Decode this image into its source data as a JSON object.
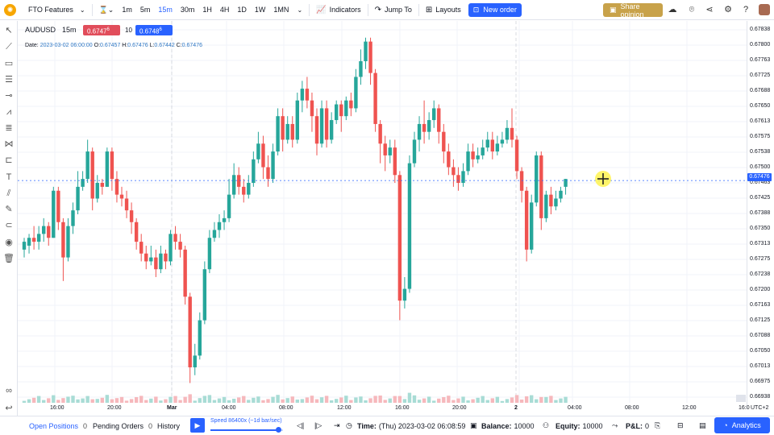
{
  "topbar": {
    "workspace": "FTO Features",
    "timeframes": [
      "1m",
      "5m",
      "15m",
      "30m",
      "1H",
      "4H",
      "1D",
      "1W",
      "1MN"
    ],
    "active_timeframe": "15m",
    "indicators": "Indicators",
    "jump_to": "Jump To",
    "layouts": "Layouts",
    "new_order": "New order",
    "share": "Share opinion"
  },
  "legend": {
    "symbol": "AUDUSD",
    "interval": "15m",
    "sell": "0.6747",
    "sell_sup": "6",
    "qty": "10",
    "buy": "0.6748",
    "buy_sup": "6",
    "date_label": "Date:",
    "date": "2023-03-02 06:00:00",
    "o_label": "O:",
    "o": "0.67457",
    "h_label": "H:",
    "h": "0.67476",
    "l_label": "L:",
    "l": "0.67442",
    "c_label": "C:",
    "c": "0.67476"
  },
  "price_axis": {
    "ticks": [
      "0.67838",
      "0.67800",
      "0.67763",
      "0.67725",
      "0.67688",
      "0.67650",
      "0.67613",
      "0.67575",
      "0.67538",
      "0.67500",
      "0.67463",
      "0.67425",
      "0.67388",
      "0.67350",
      "0.67313",
      "0.67275",
      "0.67238",
      "0.67200",
      "0.67163",
      "0.67125",
      "0.67088",
      "0.67050",
      "0.67013",
      "0.66975",
      "0.66938"
    ],
    "current": "0.67476",
    "tz": "UTC+2"
  },
  "time_axis": {
    "ticks": [
      "16:00",
      "20:00",
      "Mar",
      "04:00",
      "08:00",
      "12:00",
      "16:00",
      "20:00",
      "2",
      "04:00",
      "08:00",
      "12:00",
      "16:0"
    ]
  },
  "bottombar": {
    "open_positions": "Open Positions",
    "open_positions_count": "0",
    "pending_orders": "Pending Orders",
    "pending_orders_count": "0",
    "history": "History",
    "speed": "Speed 86400x (~1d bar/sec)",
    "time_label": "Time:",
    "time": "(Thu) 2023-03-02 06:08:59",
    "balance_label": "Balance:",
    "balance": "10000",
    "equity_label": "Equity:",
    "equity": "10000",
    "pnl_label": "P&L:",
    "pnl": "0",
    "analytics": "Analytics"
  },
  "chart_data": {
    "type": "candlestick",
    "symbol": "AUDUSD",
    "ylim": [
      0.6692,
      0.6786
    ],
    "x_ticks": [
      "16:00",
      "20:00",
      "Mar",
      "04:00",
      "08:00",
      "12:00",
      "16:00",
      "20:00",
      "2",
      "04:00",
      "08:00",
      "12:00"
    ],
    "colors": {
      "up": "#26a69a",
      "down": "#ef5350"
    },
    "candles": [
      [
        0.673,
        0.6732,
        0.6728,
        0.6733
      ],
      [
        0.6731,
        0.6733,
        0.6729,
        0.6734
      ],
      [
        0.6733,
        0.6732,
        0.673,
        0.6736
      ],
      [
        0.6732,
        0.6734,
        0.673,
        0.6736
      ],
      [
        0.6734,
        0.6736,
        0.6732,
        0.6738
      ],
      [
        0.6736,
        0.6733,
        0.6731,
        0.6737
      ],
      [
        0.6733,
        0.6745,
        0.6733,
        0.6746
      ],
      [
        0.6745,
        0.6737,
        0.6735,
        0.6746
      ],
      [
        0.6737,
        0.6728,
        0.6722,
        0.6738
      ],
      [
        0.6728,
        0.6736,
        0.6727,
        0.6738
      ],
      [
        0.6736,
        0.674,
        0.6734,
        0.6742
      ],
      [
        0.674,
        0.6746,
        0.6739,
        0.675
      ],
      [
        0.6746,
        0.6748,
        0.6745,
        0.675
      ],
      [
        0.6748,
        0.6755,
        0.6747,
        0.6758
      ],
      [
        0.6755,
        0.6743,
        0.674,
        0.6756
      ],
      [
        0.6743,
        0.6747,
        0.6742,
        0.6749
      ],
      [
        0.6747,
        0.6746,
        0.6744,
        0.6748
      ],
      [
        0.6746,
        0.6755,
        0.6746,
        0.6756
      ],
      [
        0.6755,
        0.6748,
        0.6745,
        0.6756
      ],
      [
        0.6748,
        0.6744,
        0.6742,
        0.675
      ],
      [
        0.6744,
        0.6743,
        0.6741,
        0.6746
      ],
      [
        0.6743,
        0.674,
        0.6738,
        0.6745
      ],
      [
        0.674,
        0.6737,
        0.6734,
        0.6742
      ],
      [
        0.6737,
        0.6732,
        0.673,
        0.6738
      ],
      [
        0.6732,
        0.6729,
        0.6727,
        0.6734
      ],
      [
        0.6729,
        0.6727,
        0.6725,
        0.6731
      ],
      [
        0.6727,
        0.6728,
        0.6726,
        0.6731
      ],
      [
        0.6728,
        0.6725,
        0.6723,
        0.673
      ],
      [
        0.6725,
        0.6729,
        0.6724,
        0.6731
      ],
      [
        0.6729,
        0.6727,
        0.6725,
        0.673
      ],
      [
        0.6727,
        0.6734,
        0.6726,
        0.6735
      ],
      [
        0.6734,
        0.6732,
        0.673,
        0.6736
      ],
      [
        0.6732,
        0.673,
        0.6728,
        0.6734
      ],
      [
        0.673,
        0.6718,
        0.6716,
        0.6731
      ],
      [
        0.6718,
        0.67,
        0.6696,
        0.6719
      ],
      [
        0.67,
        0.6703,
        0.6698,
        0.6706
      ],
      [
        0.6703,
        0.6712,
        0.6702,
        0.6714
      ],
      [
        0.6712,
        0.6725,
        0.6711,
        0.6727
      ],
      [
        0.6725,
        0.6733,
        0.6724,
        0.6735
      ],
      [
        0.6733,
        0.6735,
        0.6732,
        0.6737
      ],
      [
        0.6735,
        0.6737,
        0.6733,
        0.6739
      ],
      [
        0.6737,
        0.6738,
        0.6735,
        0.674
      ],
      [
        0.6738,
        0.6744,
        0.6737,
        0.6748
      ],
      [
        0.6744,
        0.6749,
        0.6743,
        0.6752
      ],
      [
        0.6749,
        0.6746,
        0.6744,
        0.6751
      ],
      [
        0.6746,
        0.6744,
        0.6742,
        0.6748
      ],
      [
        0.6744,
        0.6747,
        0.6743,
        0.6749
      ],
      [
        0.6747,
        0.6753,
        0.6746,
        0.6755
      ],
      [
        0.6753,
        0.6757,
        0.6752,
        0.676
      ],
      [
        0.6757,
        0.6751,
        0.6748,
        0.6759
      ],
      [
        0.6751,
        0.6748,
        0.6746,
        0.6754
      ],
      [
        0.6748,
        0.6755,
        0.6747,
        0.6757
      ],
      [
        0.6755,
        0.6764,
        0.6754,
        0.6766
      ],
      [
        0.6764,
        0.6758,
        0.6755,
        0.6766
      ],
      [
        0.6758,
        0.6762,
        0.6757,
        0.6764
      ],
      [
        0.6762,
        0.6758,
        0.6756,
        0.6764
      ],
      [
        0.6758,
        0.6768,
        0.6757,
        0.677
      ],
      [
        0.6768,
        0.6771,
        0.6765,
        0.6773
      ],
      [
        0.6771,
        0.6768,
        0.6766,
        0.6774
      ],
      [
        0.6768,
        0.6764,
        0.676,
        0.677
      ],
      [
        0.6764,
        0.6757,
        0.6754,
        0.6766
      ],
      [
        0.6757,
        0.6766,
        0.6756,
        0.6768
      ],
      [
        0.6766,
        0.6758,
        0.6756,
        0.6768
      ],
      [
        0.6758,
        0.6763,
        0.6757,
        0.6765
      ],
      [
        0.6763,
        0.6767,
        0.6762,
        0.6768
      ],
      [
        0.6767,
        0.6764,
        0.676,
        0.6768
      ],
      [
        0.6764,
        0.6768,
        0.6763,
        0.6769
      ],
      [
        0.6768,
        0.6766,
        0.6764,
        0.677
      ],
      [
        0.6766,
        0.6774,
        0.6765,
        0.6776
      ],
      [
        0.6774,
        0.6778,
        0.6772,
        0.6781
      ],
      [
        0.6778,
        0.6783,
        0.6776,
        0.6784
      ],
      [
        0.6783,
        0.6775,
        0.6772,
        0.6784
      ],
      [
        0.6775,
        0.6762,
        0.676,
        0.6776
      ],
      [
        0.6762,
        0.6757,
        0.6752,
        0.6763
      ],
      [
        0.6757,
        0.6754,
        0.675,
        0.6759
      ],
      [
        0.6754,
        0.6756,
        0.6752,
        0.6758
      ],
      [
        0.6756,
        0.6749,
        0.6747,
        0.6758
      ],
      [
        0.6749,
        0.6717,
        0.6712,
        0.675
      ],
      [
        0.6717,
        0.672,
        0.6715,
        0.6723
      ],
      [
        0.672,
        0.6752,
        0.6719,
        0.6754
      ],
      [
        0.6752,
        0.6758,
        0.6751,
        0.676
      ],
      [
        0.6758,
        0.6762,
        0.6755,
        0.6764
      ],
      [
        0.6762,
        0.676,
        0.6757,
        0.6768
      ],
      [
        0.676,
        0.6763,
        0.6758,
        0.6765
      ],
      [
        0.6763,
        0.6766,
        0.6761,
        0.6768
      ],
      [
        0.6766,
        0.676,
        0.6757,
        0.6767
      ],
      [
        0.676,
        0.6755,
        0.6752,
        0.6762
      ],
      [
        0.6755,
        0.6751,
        0.6749,
        0.6757
      ],
      [
        0.6751,
        0.6749,
        0.6746,
        0.6753
      ],
      [
        0.6749,
        0.6747,
        0.6745,
        0.6751
      ],
      [
        0.6747,
        0.675,
        0.6746,
        0.6752
      ],
      [
        0.675,
        0.6755,
        0.6749,
        0.6757
      ],
      [
        0.6755,
        0.6753,
        0.6751,
        0.6757
      ],
      [
        0.6753,
        0.6754,
        0.6752,
        0.6756
      ],
      [
        0.6754,
        0.6756,
        0.6753,
        0.6758
      ],
      [
        0.6756,
        0.6758,
        0.6755,
        0.676
      ],
      [
        0.6758,
        0.6755,
        0.6753,
        0.676
      ],
      [
        0.6755,
        0.6757,
        0.6754,
        0.6759
      ],
      [
        0.6757,
        0.6758,
        0.6756,
        0.676
      ],
      [
        0.6758,
        0.6761,
        0.6757,
        0.6763
      ],
      [
        0.6761,
        0.6758,
        0.6756,
        0.6766
      ],
      [
        0.6758,
        0.675,
        0.6748,
        0.6759
      ],
      [
        0.675,
        0.6745,
        0.6742,
        0.6751
      ],
      [
        0.6745,
        0.673,
        0.6727,
        0.6746
      ],
      [
        0.673,
        0.6742,
        0.6729,
        0.6744
      ],
      [
        0.6742,
        0.6754,
        0.6741,
        0.6755
      ],
      [
        0.6754,
        0.6738,
        0.6735,
        0.6755
      ],
      [
        0.6738,
        0.6744,
        0.6737,
        0.6745
      ],
      [
        0.6744,
        0.6741,
        0.6739,
        0.6746
      ],
      [
        0.6741,
        0.6743,
        0.674,
        0.6745
      ],
      [
        0.6743,
        0.6745,
        0.6742,
        0.6746
      ],
      [
        0.6746,
        0.6748,
        0.6744,
        0.6748
      ]
    ]
  }
}
